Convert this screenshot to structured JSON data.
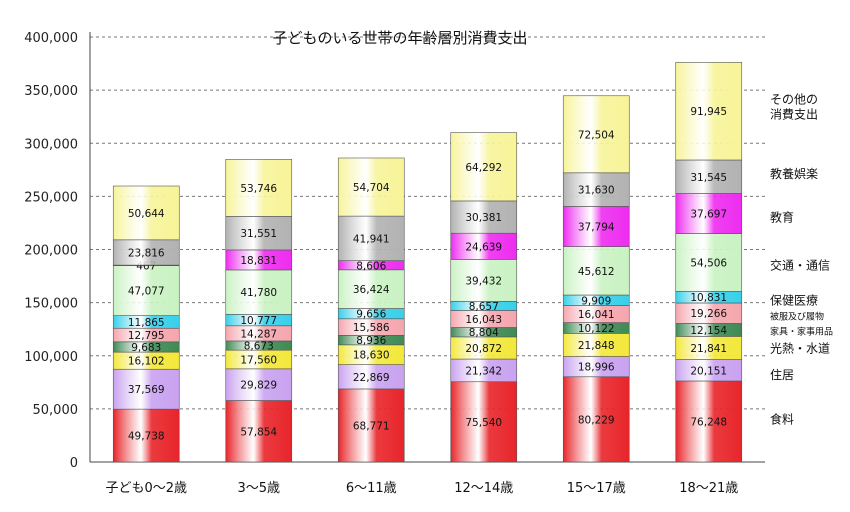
{
  "chart_data": {
    "type": "bar",
    "stacked": true,
    "title": "子どものいる世帯の年齢層別消費支出",
    "categories": [
      "子ども0～2歳",
      "3～5歳",
      "6～11歳",
      "12～14歳",
      "15～17歳",
      "18～21歳"
    ],
    "ylim": [
      0,
      400000
    ],
    "yticks": [
      "0",
      "50,000",
      "100,000",
      "150,000",
      "200,000",
      "250,000",
      "300,000",
      "350,000",
      "400,000"
    ],
    "grid": true,
    "legend_position": "right",
    "series": [
      {
        "name": "食料",
        "color": "#e8252a",
        "values": [
          49738,
          57854,
          68771,
          75540,
          80229,
          76248
        ],
        "labels": [
          "49,738",
          "57,854",
          "68,771",
          "75,540",
          "80,229",
          "76,248"
        ]
      },
      {
        "name": "住居",
        "color": "#c9a2f0",
        "values": [
          37569,
          29829,
          22869,
          21342,
          18996,
          20151
        ],
        "labels": [
          "37,569",
          "29,829",
          "22,869",
          "21,342",
          "18,996",
          "20,151"
        ]
      },
      {
        "name": "光熱・水道",
        "color": "#f3e83a",
        "values": [
          16102,
          17560,
          18630,
          20872,
          21848,
          21841
        ],
        "labels": [
          "16,102",
          "17,560",
          "18,630",
          "20,872",
          "21,848",
          "21,841"
        ]
      },
      {
        "name": "家具・家事用品",
        "color": "#3f8a55",
        "values": [
          9683,
          8673,
          8936,
          8804,
          10122,
          12154
        ],
        "labels": [
          "9,683",
          "8,673",
          "8,936",
          "8,804",
          "10,122",
          "12,154"
        ]
      },
      {
        "name": "被服及び履物",
        "color": "#f5a6ae",
        "values": [
          12795,
          14287,
          15586,
          16043,
          16041,
          19266
        ],
        "labels": [
          "12,795",
          "14,287",
          "15,586",
          "16,043",
          "16,041",
          "19,266"
        ]
      },
      {
        "name": "保健医療",
        "color": "#38d0ea",
        "values": [
          11865,
          10777,
          9656,
          8657,
          9909,
          10831
        ],
        "labels": [
          "11,865",
          "10,777",
          "9,656",
          "8,657",
          "9,909",
          "10,831"
        ]
      },
      {
        "name": "交通・通信",
        "color": "#c9f2c2",
        "values": [
          47077,
          41780,
          36424,
          39432,
          45612,
          54506
        ],
        "labels": [
          "47,077",
          "41,780",
          "36,424",
          "39,432",
          "45,612",
          "54,506"
        ]
      },
      {
        "name": "教育",
        "color": "#ee2cf0",
        "values": [
          467,
          18831,
          8606,
          24639,
          37794,
          37697
        ],
        "labels": [
          "467",
          "18,831",
          "8,606",
          "24,639",
          "37,794",
          "37,697"
        ]
      },
      {
        "name": "教養娯楽",
        "color": "#b2b2b2",
        "values": [
          23816,
          31551,
          41941,
          30381,
          31630,
          31545
        ],
        "labels": [
          "23,816",
          "31,551",
          "41,941",
          "30,381",
          "31,630",
          "31,545"
        ]
      },
      {
        "name": "その他の消費支出",
        "color": "#f7f499",
        "values": [
          50644,
          53746,
          54704,
          64292,
          72504,
          91945
        ],
        "labels": [
          "50,644",
          "53,746",
          "54,704",
          "64,292",
          "72,504",
          "91,945"
        ]
      }
    ],
    "legend": [
      {
        "lines": [
          "食料"
        ],
        "value_y": 40000,
        "small": false
      },
      {
        "lines": [
          "住居"
        ],
        "value_y": 82000,
        "small": false
      },
      {
        "lines": [
          "光熱・水道"
        ],
        "value_y": 107000,
        "small": false
      },
      {
        "lines": [
          "家具・家事用品"
        ],
        "value_y": 124000,
        "small": true
      },
      {
        "lines": [
          "被服及び履物"
        ],
        "value_y": 138000,
        "small": true
      },
      {
        "lines": [
          "保健医療"
        ],
        "value_y": 152000,
        "small": false
      },
      {
        "lines": [
          "交通・通信"
        ],
        "value_y": 185000,
        "small": false
      },
      {
        "lines": [
          "教育"
        ],
        "value_y": 230000,
        "small": false
      },
      {
        "lines": [
          "教養娯楽"
        ],
        "value_y": 271000,
        "small": false
      },
      {
        "lines": [
          "その他の",
          "消費支出"
        ],
        "value_y": 334000,
        "small": false
      }
    ]
  }
}
